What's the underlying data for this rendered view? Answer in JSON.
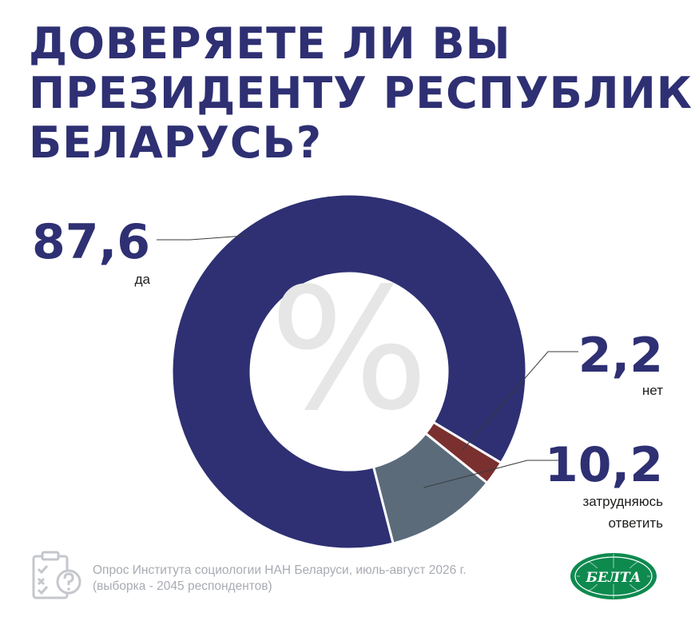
{
  "title": {
    "line1": "ДОВЕРЯЕТЕ ЛИ ВЫ",
    "line2": "ПРЕЗИДЕНТУ РЕСПУБЛИКИ",
    "line3": "БЕЛАРУСЬ?"
  },
  "center_symbol": "%",
  "chart_data": {
    "type": "pie",
    "variant": "donut",
    "unit": "%",
    "slices": [
      {
        "value": 87.6,
        "display": "87,6",
        "label": "да",
        "color": "#2e3073"
      },
      {
        "value": 2.2,
        "display": "2,2",
        "label": "нет",
        "color": "#7b3030"
      },
      {
        "value": 10.2,
        "display": "10,2",
        "label": "затрудняюсь ответить",
        "label_lines": [
          "затрудняюсь",
          "ответить"
        ],
        "color": "#5b6b7a"
      }
    ]
  },
  "footer": {
    "icon": "survey-clipboard-icon",
    "line1": "Опрос Института социологии НАН Беларуси, июль-август 2026 г.",
    "line2": "(выборка - 2045 респондентов)"
  },
  "logo": {
    "text": "БЕЛТА",
    "color": "#0e8a4f"
  }
}
